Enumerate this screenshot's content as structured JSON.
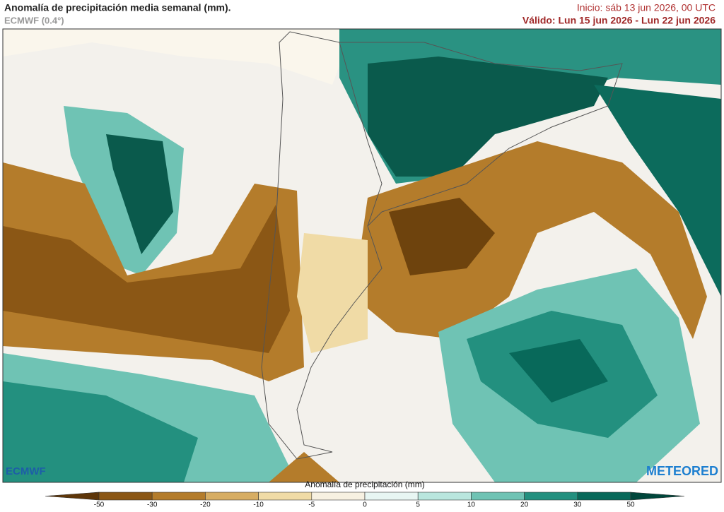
{
  "header": {
    "title": "Anomalía de precipitación media semanal (mm).",
    "model": "ECMWF (0.4°)",
    "init": "Inicio:  sáb 13 jun 2026, 00 UTC",
    "valid": "Válido: Lun 15 jun 2026 - Lun 22 jun 2026"
  },
  "legend": {
    "title": "Anomalía de precipitación (mm)",
    "ticks": [
      -50,
      -30,
      -20,
      -10,
      -5,
      0,
      5,
      10,
      20,
      30,
      50
    ],
    "colors": [
      "#5e3609",
      "#8b5715",
      "#b47c2b",
      "#d7ad63",
      "#f0dba6",
      "#f7f1e2",
      "#e8f6f3",
      "#b9e6de",
      "#6fc3b4",
      "#23907f",
      "#08695a",
      "#00463b"
    ]
  },
  "logos": {
    "left": "ECMWF",
    "right": "METEORED"
  }
}
